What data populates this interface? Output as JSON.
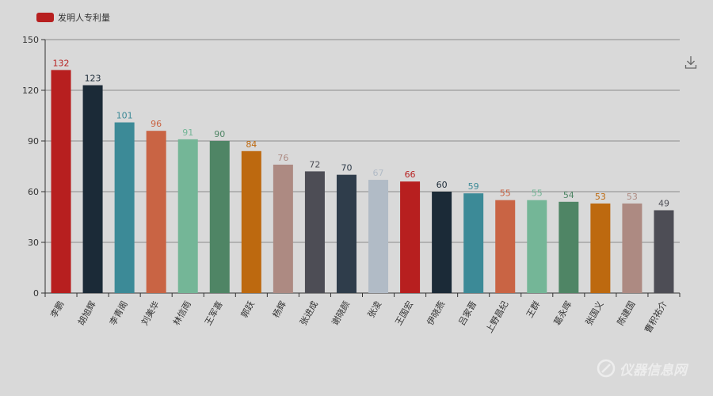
{
  "chart_data": {
    "type": "bar",
    "legend": {
      "label": "发明人专利量",
      "color": "#b71f1f",
      "position": "top-left"
    },
    "ylim": [
      0,
      150
    ],
    "yticks": [
      0,
      30,
      60,
      90,
      120,
      150
    ],
    "grid": true,
    "categories": [
      "李鹏",
      "胡旭辉",
      "李青阁",
      "刘美华",
      "林信雨",
      "王军喜",
      "郭跃",
      "杨辉",
      "张进成",
      "谢晓颜",
      "张凌",
      "王国宏",
      "伊晓燕",
      "吕家晋",
      "上野昌纪",
      "王群",
      "葛永晖",
      "张国义",
      "陈建国",
      "曹积祐介"
    ],
    "values": [
      132,
      123,
      101,
      96,
      91,
      90,
      84,
      76,
      72,
      70,
      67,
      66,
      60,
      59,
      55,
      55,
      54,
      53,
      53,
      49
    ],
    "colors": [
      "#b71f1f",
      "#1b2a37",
      "#3c8a97",
      "#c96444",
      "#74b697",
      "#4f8565",
      "#bd690f",
      "#ad8a82",
      "#4d4d55",
      "#2f3d4b",
      "#b1bbc6",
      "#b71f1f",
      "#1b2a37",
      "#3c8a97",
      "#c96444",
      "#74b697",
      "#4f8565",
      "#bd690f",
      "#ad8a82",
      "#4d4d55"
    ]
  },
  "toolbar": {
    "download_icon": "download-icon"
  },
  "watermark": {
    "text": "仪器信息网",
    "icon": "instrument-logo-icon"
  }
}
